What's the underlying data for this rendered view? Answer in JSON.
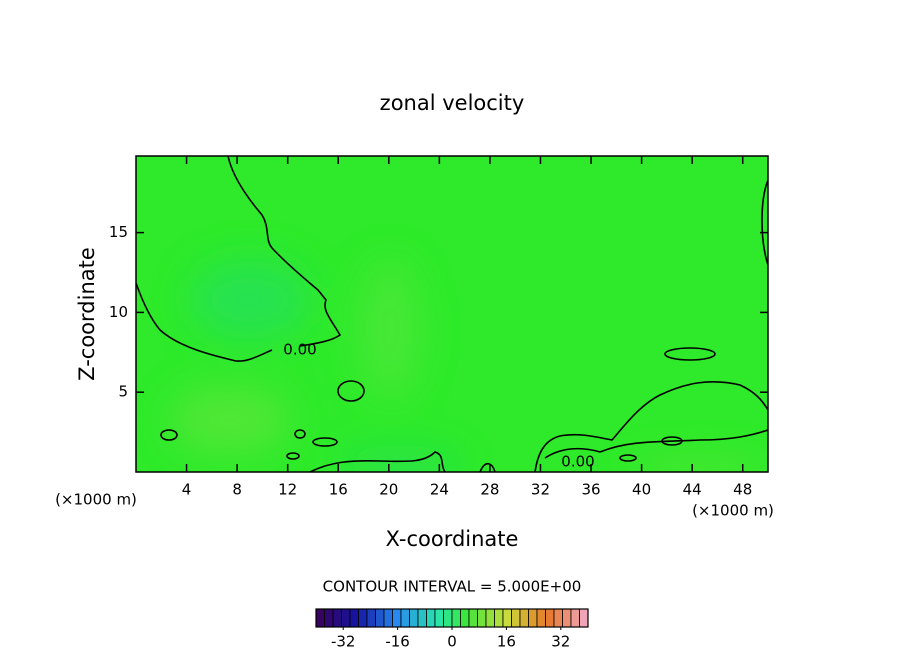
{
  "chart_data": {
    "type": "contour",
    "title": "zonal velocity",
    "x_label": "X-coordinate",
    "y_label": "Z-coordinate",
    "x_unit_label": "(×1000 m)",
    "xlim": [
      0,
      50
    ],
    "xticks": [
      4,
      8,
      12,
      16,
      20,
      24,
      28,
      32,
      36,
      40,
      44,
      48
    ],
    "ylim": [
      0,
      19.8
    ],
    "yticks": [
      5,
      10,
      15
    ],
    "field_color": "#2eea2a",
    "contour_levels": [
      0
    ],
    "contour_value_labels": [
      "0.00"
    ],
    "contour_interval_text": "CONTOUR INTERVAL = 5.000E+00",
    "colorbar_lim": [
      -40,
      40
    ],
    "colorbar_ticks": [
      -32,
      -16,
      0,
      16,
      32
    ]
  }
}
